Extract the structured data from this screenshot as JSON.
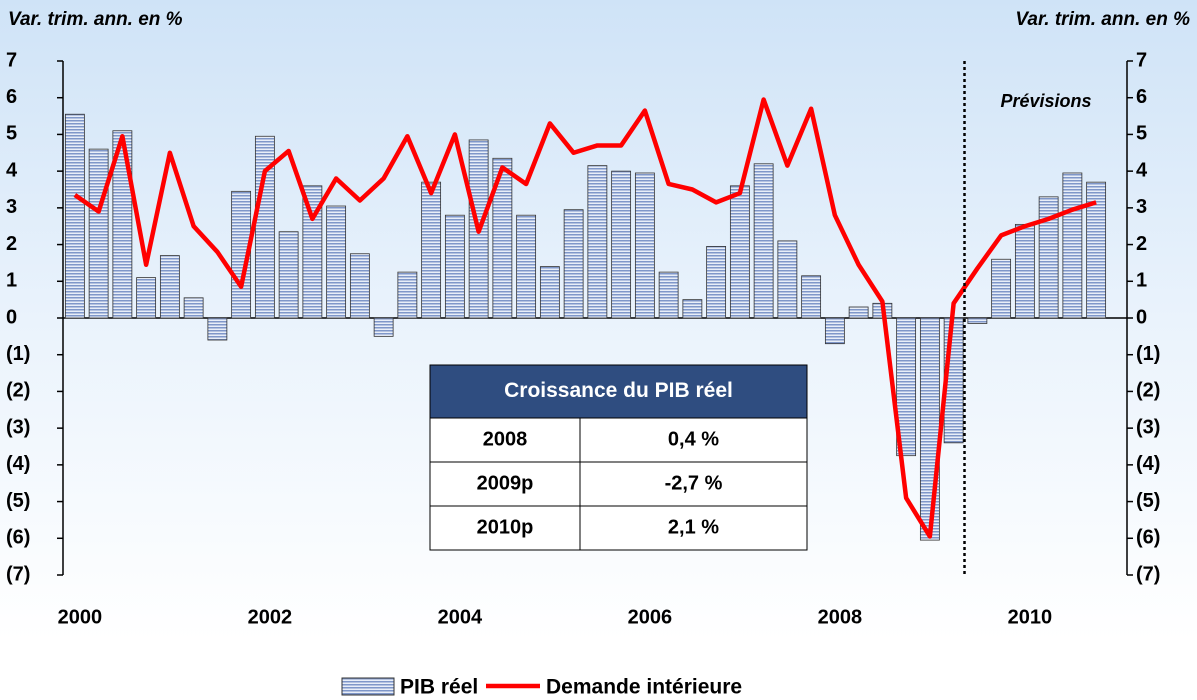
{
  "chart_data": {
    "type": "bar",
    "y_title": "Var. trim. ann. en %",
    "y2_title": "Var. trim. ann. en %",
    "annotation": "Prévisions",
    "categories": [
      "2000",
      null,
      null,
      null,
      null,
      null,
      null,
      null,
      "2002",
      null,
      null,
      null,
      null,
      null,
      null,
      null,
      "2004",
      null,
      null,
      null,
      null,
      null,
      null,
      null,
      "2006",
      null,
      null,
      null,
      null,
      null,
      null,
      null,
      "2008",
      null,
      null,
      null,
      null,
      null,
      null,
      null,
      "2010",
      null,
      null,
      null
    ],
    "series": [
      {
        "name": "PIB réel",
        "type": "bar",
        "color": "#7f97c9",
        "values": [
          5.55,
          4.6,
          5.1,
          1.1,
          1.7,
          0.55,
          -0.6,
          3.45,
          4.95,
          2.35,
          3.6,
          3.05,
          1.75,
          -0.5,
          1.25,
          3.7,
          2.8,
          4.85,
          4.35,
          2.8,
          1.4,
          2.95,
          4.15,
          4.0,
          3.95,
          1.25,
          0.5,
          1.95,
          3.6,
          4.2,
          2.1,
          1.15,
          -0.7,
          0.3,
          0.4,
          -3.75,
          -6.05,
          -3.4,
          -0.15,
          1.6,
          2.55,
          3.3,
          3.95,
          3.7
        ]
      },
      {
        "name": "Demande intérieure",
        "type": "line",
        "color": "#ff0000",
        "values": [
          3.35,
          2.9,
          4.95,
          1.45,
          4.5,
          2.5,
          1.8,
          0.85,
          4.0,
          4.55,
          2.7,
          3.8,
          3.2,
          3.8,
          4.95,
          3.4,
          5.0,
          2.35,
          4.1,
          3.65,
          5.3,
          4.5,
          4.7,
          4.7,
          5.65,
          3.65,
          3.5,
          3.15,
          3.4,
          5.95,
          4.15,
          5.7,
          2.8,
          1.45,
          0.45,
          -4.9,
          -5.95,
          0.4,
          1.35,
          2.25,
          2.5,
          2.7,
          2.95,
          3.15
        ]
      }
    ],
    "ylim": [
      -7,
      7
    ],
    "yticks": [
      {
        "value": -7,
        "label": "(7)"
      },
      {
        "value": -6,
        "label": "(6)"
      },
      {
        "value": -5,
        "label": "(5)"
      },
      {
        "value": -4,
        "label": "(4)"
      },
      {
        "value": -3,
        "label": "(3)"
      },
      {
        "value": -2,
        "label": "(2)"
      },
      {
        "value": -1,
        "label": "(1)"
      },
      0,
      1,
      2,
      3,
      4,
      5,
      6,
      7
    ],
    "y2lim": [
      -7,
      7
    ],
    "y2ticks": [
      {
        "value": -7,
        "label": "(7)"
      },
      {
        "value": -6,
        "label": "(6)"
      },
      {
        "value": -5,
        "label": "(5)"
      },
      {
        "value": -4,
        "label": "(4)"
      },
      {
        "value": -3,
        "label": "(3)"
      },
      {
        "value": -2,
        "label": "(2)"
      },
      {
        "value": -1,
        "label": "(1)"
      },
      0,
      1,
      2,
      3,
      4,
      5,
      6,
      7
    ],
    "legend": "bottom",
    "table": {
      "title": "Croissance du PIB réel",
      "rows": [
        [
          "2008",
          "0,4 %"
        ],
        [
          "2009p",
          "-2,7 %"
        ],
        [
          "2010p",
          "2,1 %"
        ]
      ]
    }
  }
}
